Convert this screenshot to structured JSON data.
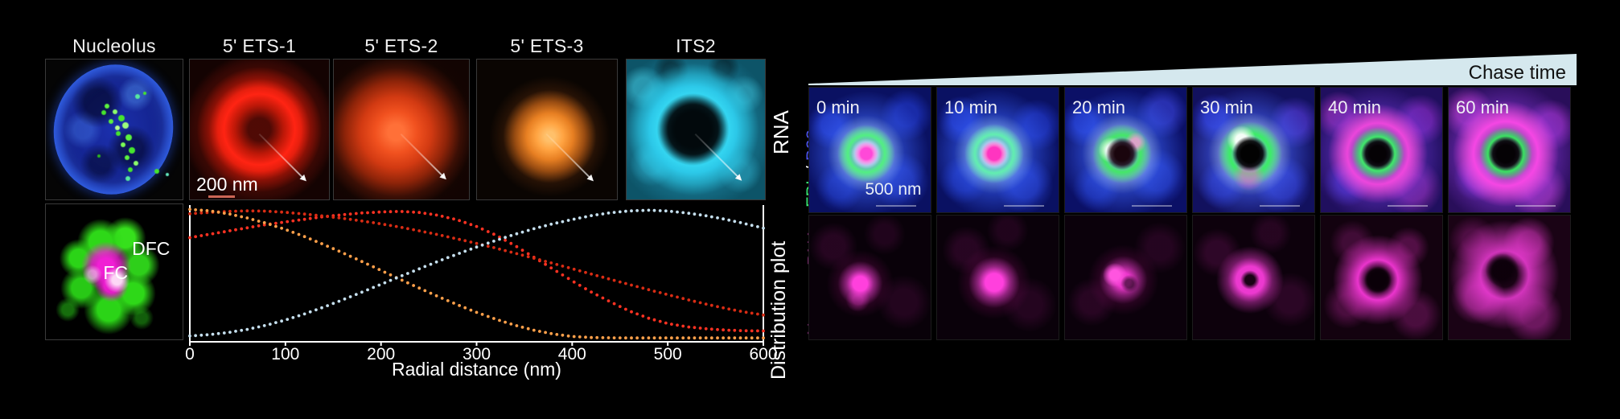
{
  "left_panel": {
    "column_titles": [
      "Nucleolus",
      "5' ETS-1",
      "5' ETS-2",
      "5' ETS-3",
      "ITS2"
    ],
    "row1_label": "RNA",
    "row2_label": "Distribution plot",
    "scale_bar_label": "200 nm",
    "dfc_label": "DFC",
    "fc_label": "FC"
  },
  "right_panel": {
    "chase_label": "Chase time",
    "wedge_color": "#d5e8ee",
    "chase_text_color": "#111111",
    "times": [
      "0 min",
      "10 min",
      "20 min",
      "30 min",
      "40 min",
      "60 min"
    ],
    "row1_label_parts": {
      "fbl": "FBL",
      "sep": " / ",
      "b23": "B23"
    },
    "fbl_color": "#37e673",
    "b23_color": "#4b52f0",
    "nascent_label": "Nascent RNA",
    "nascent_color": "#ee4fd5",
    "scale_bar_label": "500 nm"
  },
  "chart_data": {
    "type": "line",
    "style": "dotted",
    "title": "",
    "xlabel": "Radial distance (nm)",
    "ylabel": "Distribution plot",
    "xticks": [
      0,
      100,
      200,
      300,
      400,
      500,
      600
    ],
    "xlim": [
      0,
      600
    ],
    "ylim": [
      0,
      1
    ],
    "x_step": 20,
    "grid": false,
    "legend": "none",
    "series": [
      {
        "name": "5' ETS-1",
        "color": "#ff3222",
        "values": [
          0.77,
          0.795,
          0.82,
          0.845,
          0.87,
          0.89,
          0.91,
          0.93,
          0.945,
          0.958,
          0.966,
          0.97,
          0.962,
          0.94,
          0.905,
          0.855,
          0.79,
          0.71,
          0.62,
          0.53,
          0.44,
          0.355,
          0.28,
          0.21,
          0.155,
          0.115,
          0.09,
          0.075,
          0.065,
          0.06,
          0.058
        ]
      },
      {
        "name": "5' ETS-2",
        "color": "#d92c14",
        "values": [
          0.952,
          0.962,
          0.97,
          0.974,
          0.972,
          0.963,
          0.95,
          0.935,
          0.917,
          0.897,
          0.875,
          0.85,
          0.822,
          0.792,
          0.76,
          0.726,
          0.69,
          0.652,
          0.613,
          0.573,
          0.533,
          0.492,
          0.452,
          0.412,
          0.373,
          0.335,
          0.298,
          0.263,
          0.231,
          0.203,
          0.18
        ]
      },
      {
        "name": "5' ETS-3",
        "color": "#ffa04a",
        "values": [
          0.985,
          0.975,
          0.952,
          0.92,
          0.88,
          0.832,
          0.778,
          0.718,
          0.654,
          0.588,
          0.52,
          0.452,
          0.385,
          0.32,
          0.258,
          0.2,
          0.148,
          0.102,
          0.064,
          0.035,
          0.016,
          0.008,
          0.006,
          0.005,
          0.005,
          0.005,
          0.005,
          0.005,
          0.005,
          0.005,
          0.005
        ]
      },
      {
        "name": "ITS2",
        "color": "#c5dfee",
        "values": [
          0.02,
          0.03,
          0.046,
          0.07,
          0.102,
          0.142,
          0.188,
          0.24,
          0.296,
          0.354,
          0.414,
          0.474,
          0.532,
          0.59,
          0.645,
          0.698,
          0.748,
          0.795,
          0.838,
          0.876,
          0.908,
          0.938,
          0.96,
          0.974,
          0.979,
          0.973,
          0.958,
          0.937,
          0.91,
          0.878,
          0.843
        ]
      }
    ]
  }
}
